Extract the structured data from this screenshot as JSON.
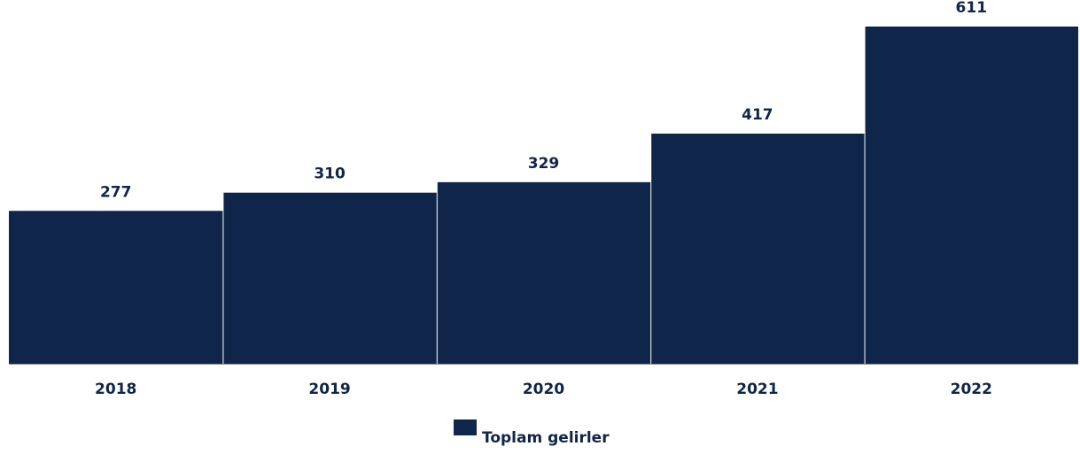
{
  "chart_data": {
    "type": "bar",
    "categories": [
      "2018",
      "2019",
      "2020",
      "2021",
      "2022"
    ],
    "series": [
      {
        "name": "Toplam gelirler",
        "color": "#0f2549",
        "values": [
          277,
          310,
          329,
          417,
          611
        ]
      }
    ]
  }
}
